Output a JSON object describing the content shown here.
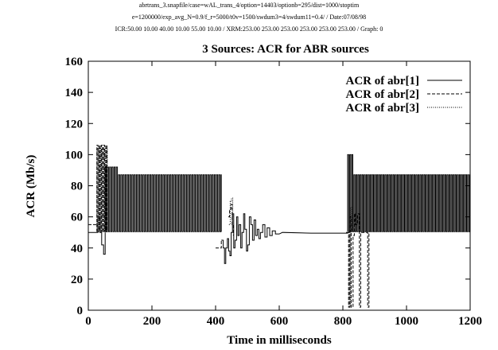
{
  "header": {
    "line1": "abrtrans_3.snapfile/case=wAL_trans_4/option=14403/optionb=295/dist=1000/stoptim",
    "line2": "e=1200000/exp_avg_N=0.9/f_r=5000/t0v=1500/swdum3=4/swdum11=0.4/ / Date:07/08/98",
    "line3": "ICR:50.00 10.00 40.00 10.00 55.00 10.00 / XRM:253.00 253.00 253.00 253.00 253.00 253.00 / Graph: 0"
  },
  "chart_data": {
    "type": "line",
    "title": "3 Sources: ACR for ABR sources",
    "xlabel": "Time in milliseconds",
    "ylabel": "ACR (Mb/s)",
    "xlim": [
      0,
      1200
    ],
    "ylim": [
      0,
      160
    ],
    "xticks": [
      0,
      200,
      400,
      600,
      800,
      1000,
      1200
    ],
    "yticks": [
      0,
      20,
      40,
      60,
      80,
      100,
      120,
      140,
      160
    ],
    "grid": false,
    "legend_position": "top-right",
    "series": [
      {
        "name": "ACR of abr[1]",
        "style": "solid",
        "segments": [
          {
            "kind": "path",
            "points": [
              [
                0,
                50
              ],
              [
                30,
                50
              ],
              [
                30,
                60
              ],
              [
                37,
                60
              ],
              [
                37,
                50
              ],
              [
                42,
                50
              ],
              [
                42,
                42
              ],
              [
                48,
                42
              ],
              [
                48,
                36
              ],
              [
                53,
                36
              ],
              [
                53,
                50
              ]
            ]
          },
          {
            "kind": "oscillation",
            "x_start": 53,
            "x_end": 418,
            "period": 7,
            "low": 50.5,
            "high": 87,
            "first_high": 92,
            "first_count": 6
          },
          {
            "kind": "path",
            "points": [
              [
                418,
                45
              ],
              [
                424,
                45
              ],
              [
                424,
                40
              ],
              [
                428,
                40
              ],
              [
                428,
                30
              ],
              [
                432,
                30
              ],
              [
                432,
                40
              ],
              [
                437,
                40
              ],
              [
                437,
                46
              ],
              [
                441,
                46
              ],
              [
                441,
                38
              ],
              [
                445,
                38
              ],
              [
                445,
                35
              ],
              [
                449,
                35
              ],
              [
                449,
                50
              ],
              [
                453,
                50
              ],
              [
                453,
                62
              ],
              [
                457,
                62
              ],
              [
                457,
                40
              ],
              [
                461,
                40
              ],
              [
                461,
                45
              ],
              [
                466,
                45
              ],
              [
                466,
                60
              ],
              [
                470,
                60
              ],
              [
                470,
                48
              ],
              [
                474,
                48
              ],
              [
                474,
                55
              ],
              [
                479,
                55
              ],
              [
                479,
                40
              ],
              [
                483,
                40
              ],
              [
                483,
                50
              ],
              [
                488,
                50
              ],
              [
                488,
                62
              ],
              [
                492,
                62
              ],
              [
                492,
                52
              ],
              [
                497,
                52
              ],
              [
                497,
                38
              ],
              [
                501,
                38
              ],
              [
                501,
                42
              ],
              [
                506,
                42
              ],
              [
                506,
                60
              ],
              [
                511,
                60
              ],
              [
                511,
                55
              ],
              [
                516,
                55
              ],
              [
                516,
                45
              ],
              [
                521,
                45
              ],
              [
                521,
                58
              ],
              [
                526,
                58
              ],
              [
                526,
                48
              ],
              [
                531,
                48
              ],
              [
                531,
                52
              ],
              [
                536,
                52
              ],
              [
                536,
                46
              ],
              [
                541,
                46
              ],
              [
                541,
                50
              ],
              [
                548,
                50
              ],
              [
                548,
                55
              ],
              [
                555,
                55
              ],
              [
                555,
                47
              ],
              [
                562,
                47
              ],
              [
                562,
                53
              ],
              [
                570,
                53
              ],
              [
                570,
                48
              ],
              [
                578,
                48
              ],
              [
                578,
                51
              ],
              [
                588,
                51
              ],
              [
                588,
                49
              ],
              [
                600,
                49
              ],
              [
                610,
                50
              ],
              [
                700,
                49.5
              ],
              [
                815,
                49.5
              ],
              [
                815,
                50
              ]
            ]
          },
          {
            "kind": "oscillation",
            "x_start": 815,
            "x_end": 1200,
            "period": 6.5,
            "low": 50.5,
            "high": 87,
            "first_high": 100,
            "first_count": 3
          }
        ]
      },
      {
        "name": "ACR of abr[2]",
        "style": "dashed",
        "segments": [
          {
            "kind": "path",
            "points": [
              [
                0,
                55
              ],
              [
                25,
                55
              ]
            ]
          },
          {
            "kind": "oscillation",
            "x_start": 27,
            "x_end": 60,
            "period": 7,
            "low": 50.5,
            "high": 106,
            "first_high": 106,
            "first_count": 0
          },
          {
            "kind": "path",
            "points": [
              [
                400,
                40
              ],
              [
                418,
                40
              ],
              [
                418,
                45
              ]
            ]
          },
          {
            "kind": "path",
            "points": [
              [
                440,
                60
              ],
              [
                444,
                60
              ],
              [
                444,
                65
              ],
              [
                448,
                65
              ],
              [
                448,
                68
              ],
              [
                452,
                68
              ],
              [
                452,
                55
              ],
              [
                456,
                55
              ],
              [
                456,
                48
              ]
            ]
          },
          {
            "kind": "path",
            "points": [
              [
                810,
                50
              ],
              [
                818,
                50
              ],
              [
                818,
                2
              ],
              [
                822,
                2
              ],
              [
                822,
                60
              ],
              [
                826,
                60
              ],
              [
                826,
                2
              ],
              [
                832,
                2
              ],
              [
                832,
                48
              ],
              [
                836,
                48
              ],
              [
                836,
                62
              ],
              [
                840,
                62
              ],
              [
                840,
                55
              ],
              [
                846,
                55
              ],
              [
                846,
                62
              ],
              [
                852,
                62
              ],
              [
                852,
                2
              ],
              [
                856,
                2
              ],
              [
                856,
                50
              ],
              [
                878,
                50
              ],
              [
                878,
                2
              ],
              [
                882,
                2
              ],
              [
                882,
                50
              ]
            ]
          }
        ]
      },
      {
        "name": "ACR of abr[3]",
        "style": "dotted",
        "segments": [
          {
            "kind": "oscillation",
            "x_start": 27,
            "x_end": 60,
            "period": 6,
            "low": 50.5,
            "high": 104,
            "first_high": 104,
            "first_count": 0
          },
          {
            "kind": "path",
            "points": [
              [
                442,
                55
              ],
              [
                446,
                55
              ],
              [
                446,
                70
              ],
              [
                450,
                70
              ],
              [
                450,
                72
              ],
              [
                454,
                72
              ],
              [
                454,
                60
              ]
            ]
          },
          {
            "kind": "path",
            "points": [
              [
                812,
                50
              ],
              [
                820,
                50
              ],
              [
                820,
                2
              ],
              [
                824,
                2
              ],
              [
                824,
                66
              ],
              [
                828,
                66
              ],
              [
                828,
                50
              ]
            ]
          }
        ]
      }
    ]
  }
}
